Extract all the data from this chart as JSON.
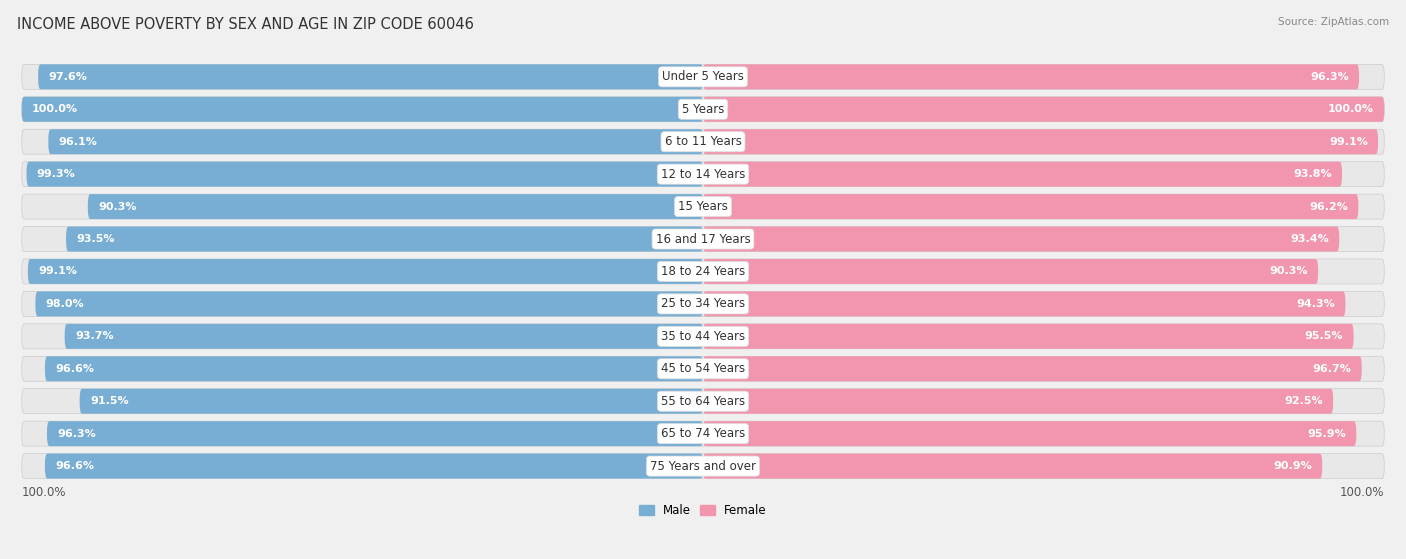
{
  "title": "INCOME ABOVE POVERTY BY SEX AND AGE IN ZIP CODE 60046",
  "source": "Source: ZipAtlas.com",
  "categories": [
    "Under 5 Years",
    "5 Years",
    "6 to 11 Years",
    "12 to 14 Years",
    "15 Years",
    "16 and 17 Years",
    "18 to 24 Years",
    "25 to 34 Years",
    "35 to 44 Years",
    "45 to 54 Years",
    "55 to 64 Years",
    "65 to 74 Years",
    "75 Years and over"
  ],
  "male_values": [
    97.6,
    100.0,
    96.1,
    99.3,
    90.3,
    93.5,
    99.1,
    98.0,
    93.7,
    96.6,
    91.5,
    96.3,
    96.6
  ],
  "female_values": [
    96.3,
    100.0,
    99.1,
    93.8,
    96.2,
    93.4,
    90.3,
    94.3,
    95.5,
    96.7,
    92.5,
    95.9,
    90.9
  ],
  "male_color": "#78aed4",
  "female_color": "#f196ae",
  "male_label": "Male",
  "female_label": "Female",
  "bg_color": "#f0f0f0",
  "bar_bg_color": "#e8e8e8",
  "title_fontsize": 10.5,
  "label_fontsize": 8.5,
  "value_fontsize": 8.0,
  "source_fontsize": 7.5
}
